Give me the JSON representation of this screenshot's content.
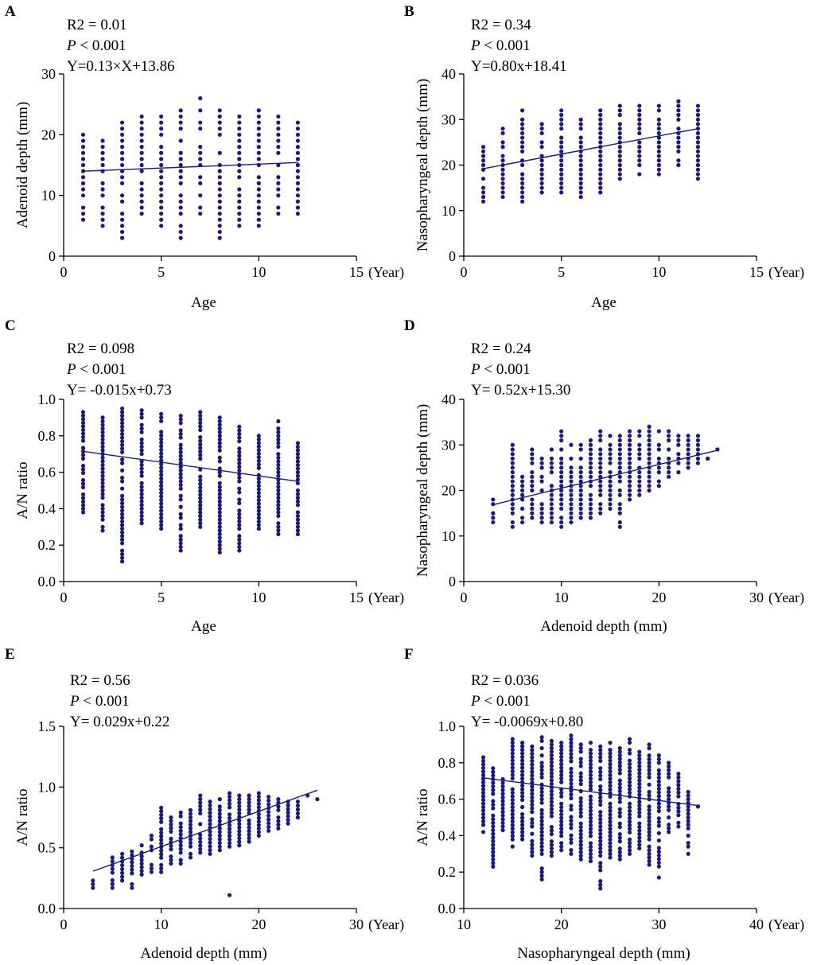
{
  "figure": {
    "series_color": "#1a1a7e",
    "axis_color": "#000000"
  },
  "chart_data": [
    {
      "type": "scatter",
      "panel": "A",
      "xlabel": "Age",
      "ylabel": "Adenoid depth (mm)",
      "x_unit": "(Year)",
      "xlim": [
        0,
        15
      ],
      "ylim": [
        0,
        30
      ],
      "xticks": [
        0,
        5,
        10,
        15
      ],
      "yticks": [
        0,
        10,
        20,
        30
      ],
      "stats": {
        "r2": "R2 = 0.01",
        "p_italic": "P",
        "p_rest": " < 0.001",
        "equation": "Y=0.13×X+13.86"
      },
      "fit": {
        "slope": 0.13,
        "intercept": 13.86,
        "x_range": [
          1,
          12
        ]
      },
      "groups": [
        {
          "x": 1,
          "y_min": 6,
          "y_max": 20
        },
        {
          "x": 2,
          "y_min": 5,
          "y_max": 19
        },
        {
          "x": 3,
          "y_min": 3,
          "y_max": 22
        },
        {
          "x": 4,
          "y_min": 7,
          "y_max": 23
        },
        {
          "x": 5,
          "y_min": 5,
          "y_max": 23
        },
        {
          "x": 6,
          "y_min": 3,
          "y_max": 24
        },
        {
          "x": 7,
          "y_min": 7,
          "y_max": 26
        },
        {
          "x": 8,
          "y_min": 3,
          "y_max": 24
        },
        {
          "x": 9,
          "y_min": 5,
          "y_max": 23
        },
        {
          "x": 10,
          "y_min": 5,
          "y_max": 24
        },
        {
          "x": 11,
          "y_min": 7,
          "y_max": 23
        },
        {
          "x": 12,
          "y_min": 7,
          "y_max": 22
        }
      ]
    },
    {
      "type": "scatter",
      "panel": "B",
      "xlabel": "Age",
      "ylabel": "Nasopharyngeal depth (mm)",
      "x_unit": "(Year)",
      "xlim": [
        0,
        15
      ],
      "ylim": [
        0,
        40
      ],
      "xticks": [
        0,
        5,
        10,
        15
      ],
      "yticks": [
        0,
        10,
        20,
        30,
        40
      ],
      "stats": {
        "r2": "R2 = 0.34",
        "p_italic": "P",
        "p_rest": " < 0.001",
        "equation": "Y=0.80x+18.41"
      },
      "fit": {
        "slope": 0.8,
        "intercept": 18.41,
        "x_range": [
          1,
          12
        ]
      },
      "groups": [
        {
          "x": 1,
          "y_min": 12,
          "y_max": 24
        },
        {
          "x": 2,
          "y_min": 13,
          "y_max": 28
        },
        {
          "x": 3,
          "y_min": 12,
          "y_max": 32
        },
        {
          "x": 4,
          "y_min": 14,
          "y_max": 29
        },
        {
          "x": 5,
          "y_min": 14,
          "y_max": 32
        },
        {
          "x": 6,
          "y_min": 13,
          "y_max": 30
        },
        {
          "x": 7,
          "y_min": 14,
          "y_max": 32
        },
        {
          "x": 8,
          "y_min": 17,
          "y_max": 33
        },
        {
          "x": 9,
          "y_min": 18,
          "y_max": 33
        },
        {
          "x": 10,
          "y_min": 18,
          "y_max": 33
        },
        {
          "x": 11,
          "y_min": 20,
          "y_max": 34
        },
        {
          "x": 12,
          "y_min": 17,
          "y_max": 33
        }
      ]
    },
    {
      "type": "scatter",
      "panel": "C",
      "xlabel": "Age",
      "ylabel": "A/N ratio",
      "x_unit": "(Year)",
      "xlim": [
        0,
        15
      ],
      "ylim": [
        0,
        1.0
      ],
      "xticks": [
        0,
        5,
        10,
        15
      ],
      "yticks": [
        0.0,
        0.2,
        0.4,
        0.6,
        0.8,
        1.0
      ],
      "ytick_labels": [
        "0.0",
        "0.2",
        "0.4",
        "0.6",
        "0.8",
        "1.0"
      ],
      "stats": {
        "r2": "R2 = 0.098",
        "p_italic": "P",
        "p_rest": " < 0.001",
        "equation": "Y= -0.015x+0.73"
      },
      "fit": {
        "slope": -0.015,
        "intercept": 0.73,
        "x_range": [
          1,
          12
        ]
      },
      "groups": [
        {
          "x": 1,
          "y_min": 0.38,
          "y_max": 0.93
        },
        {
          "x": 2,
          "y_min": 0.28,
          "y_max": 0.9
        },
        {
          "x": 3,
          "y_min": 0.11,
          "y_max": 0.95
        },
        {
          "x": 4,
          "y_min": 0.32,
          "y_max": 0.94
        },
        {
          "x": 5,
          "y_min": 0.29,
          "y_max": 0.92
        },
        {
          "x": 6,
          "y_min": 0.17,
          "y_max": 0.91
        },
        {
          "x": 7,
          "y_min": 0.3,
          "y_max": 0.93
        },
        {
          "x": 8,
          "y_min": 0.16,
          "y_max": 0.9
        },
        {
          "x": 9,
          "y_min": 0.17,
          "y_max": 0.85
        },
        {
          "x": 10,
          "y_min": 0.29,
          "y_max": 0.8
        },
        {
          "x": 11,
          "y_min": 0.26,
          "y_max": 0.88
        },
        {
          "x": 12,
          "y_min": 0.26,
          "y_max": 0.76
        }
      ]
    },
    {
      "type": "scatter",
      "panel": "D",
      "xlabel": "Adenoid depth (mm)",
      "ylabel": "Nasopharyngeal depth (mm)",
      "x_unit": "(Year)",
      "xlim": [
        0,
        30
      ],
      "ylim": [
        0,
        40
      ],
      "xticks": [
        0,
        10,
        20,
        30
      ],
      "yticks": [
        0,
        10,
        20,
        30,
        40
      ],
      "stats": {
        "r2": "R2 = 0.24",
        "p_italic": "P",
        "p_rest": " < 0.001",
        "equation": "Y= 0.52x+15.30"
      },
      "fit": {
        "slope": 0.52,
        "intercept": 15.3,
        "x_range": [
          3,
          26
        ]
      },
      "groups": [
        {
          "x": 3,
          "y_min": 13,
          "y_max": 18
        },
        {
          "x": 5,
          "y_min": 12,
          "y_max": 30
        },
        {
          "x": 6,
          "y_min": 13,
          "y_max": 23
        },
        {
          "x": 7,
          "y_min": 14,
          "y_max": 29
        },
        {
          "x": 8,
          "y_min": 13,
          "y_max": 27
        },
        {
          "x": 9,
          "y_min": 13,
          "y_max": 29
        },
        {
          "x": 10,
          "y_min": 12,
          "y_max": 33
        },
        {
          "x": 11,
          "y_min": 13,
          "y_max": 30
        },
        {
          "x": 12,
          "y_min": 14,
          "y_max": 30
        },
        {
          "x": 13,
          "y_min": 14,
          "y_max": 31
        },
        {
          "x": 14,
          "y_min": 15,
          "y_max": 33
        },
        {
          "x": 15,
          "y_min": 16,
          "y_max": 32
        },
        {
          "x": 16,
          "y_min": 12,
          "y_max": 32
        },
        {
          "x": 17,
          "y_min": 18,
          "y_max": 33
        },
        {
          "x": 18,
          "y_min": 19,
          "y_max": 33
        },
        {
          "x": 19,
          "y_min": 20,
          "y_max": 34
        },
        {
          "x": 20,
          "y_min": 21,
          "y_max": 33
        },
        {
          "x": 21,
          "y_min": 23,
          "y_max": 33
        },
        {
          "x": 22,
          "y_min": 24,
          "y_max": 32
        },
        {
          "x": 23,
          "y_min": 25,
          "y_max": 32
        },
        {
          "x": 24,
          "y_min": 26,
          "y_max": 32
        },
        {
          "x": 25,
          "y_min": 27,
          "y_max": 27
        },
        {
          "x": 26,
          "y_min": 29,
          "y_max": 29
        }
      ]
    },
    {
      "type": "scatter",
      "panel": "E",
      "xlabel": "Adenoid depth (mm)",
      "ylabel": "A/N ratio",
      "x_unit": "(Year)",
      "xlim": [
        0,
        30
      ],
      "ylim": [
        0,
        1.5
      ],
      "xticks": [
        0,
        10,
        20,
        30
      ],
      "yticks": [
        0.0,
        0.5,
        1.0,
        1.5
      ],
      "ytick_labels": [
        "0.0",
        "0.5",
        "1.0",
        "1.5"
      ],
      "stats": {
        "r2": "R2 = 0.56",
        "p_italic": "P",
        "p_rest": " < 0.001",
        "equation": "Y= 0.029x+0.22"
      },
      "fit": {
        "slope": 0.029,
        "intercept": 0.22,
        "x_range": [
          3,
          26
        ]
      },
      "groups": [
        {
          "x": 3,
          "y_min": 0.17,
          "y_max": 0.23
        },
        {
          "x": 5,
          "y_min": 0.17,
          "y_max": 0.42
        },
        {
          "x": 6,
          "y_min": 0.23,
          "y_max": 0.45
        },
        {
          "x": 7,
          "y_min": 0.17,
          "y_max": 0.47
        },
        {
          "x": 8,
          "y_min": 0.28,
          "y_max": 0.52
        },
        {
          "x": 9,
          "y_min": 0.3,
          "y_max": 0.6
        },
        {
          "x": 10,
          "y_min": 0.3,
          "y_max": 0.83
        },
        {
          "x": 11,
          "y_min": 0.37,
          "y_max": 0.75
        },
        {
          "x": 12,
          "y_min": 0.37,
          "y_max": 0.79
        },
        {
          "x": 13,
          "y_min": 0.42,
          "y_max": 0.81
        },
        {
          "x": 14,
          "y_min": 0.46,
          "y_max": 0.93
        },
        {
          "x": 15,
          "y_min": 0.45,
          "y_max": 0.88
        },
        {
          "x": 16,
          "y_min": 0.48,
          "y_max": 0.9
        },
        {
          "x": 17,
          "y_min": 0.51,
          "y_max": 0.95
        },
        {
          "x": 18,
          "y_min": 0.52,
          "y_max": 0.93
        },
        {
          "x": 19,
          "y_min": 0.55,
          "y_max": 0.93
        },
        {
          "x": 20,
          "y_min": 0.6,
          "y_max": 0.95
        },
        {
          "x": 21,
          "y_min": 0.64,
          "y_max": 0.92
        },
        {
          "x": 22,
          "y_min": 0.66,
          "y_max": 0.9
        },
        {
          "x": 23,
          "y_min": 0.7,
          "y_max": 0.88
        },
        {
          "x": 24,
          "y_min": 0.75,
          "y_max": 0.88
        }
      ],
      "points": [
        {
          "x": 17,
          "y": 0.11
        },
        {
          "x": 25,
          "y": 0.93
        },
        {
          "x": 26,
          "y": 0.9
        }
      ]
    },
    {
      "type": "scatter",
      "panel": "F",
      "xlabel": "Nasopharyngeal depth (mm)",
      "ylabel": "A/N ratio",
      "x_unit": "(Year)",
      "xlim": [
        10,
        40
      ],
      "ylim": [
        0,
        1.0
      ],
      "xticks": [
        10,
        20,
        30,
        40
      ],
      "yticks": [
        0.0,
        0.2,
        0.4,
        0.6,
        0.8,
        1.0
      ],
      "ytick_labels": [
        "0.0",
        "0.2",
        "0.4",
        "0.6",
        "0.8",
        "1.0"
      ],
      "stats": {
        "r2": "R2 = 0.036",
        "p_italic": "P",
        "p_rest": " < 0.001",
        "equation": "Y= -0.0069x+0.80"
      },
      "fit": {
        "slope": -0.0069,
        "intercept": 0.8,
        "x_range": [
          12,
          34
        ]
      },
      "groups": [
        {
          "x": 12,
          "y_min": 0.42,
          "y_max": 0.83
        },
        {
          "x": 13,
          "y_min": 0.23,
          "y_max": 0.77
        },
        {
          "x": 14,
          "y_min": 0.43,
          "y_max": 0.71
        },
        {
          "x": 15,
          "y_min": 0.34,
          "y_max": 0.93
        },
        {
          "x": 16,
          "y_min": 0.38,
          "y_max": 0.91
        },
        {
          "x": 17,
          "y_min": 0.29,
          "y_max": 0.89
        },
        {
          "x": 18,
          "y_min": 0.16,
          "y_max": 0.94
        },
        {
          "x": 19,
          "y_min": 0.29,
          "y_max": 0.92
        },
        {
          "x": 20,
          "y_min": 0.32,
          "y_max": 0.91
        },
        {
          "x": 21,
          "y_min": 0.3,
          "y_max": 0.95
        },
        {
          "x": 22,
          "y_min": 0.27,
          "y_max": 0.9
        },
        {
          "x": 23,
          "y_min": 0.26,
          "y_max": 0.91
        },
        {
          "x": 24,
          "y_min": 0.11,
          "y_max": 0.89
        },
        {
          "x": 25,
          "y_min": 0.28,
          "y_max": 0.91
        },
        {
          "x": 26,
          "y_min": 0.27,
          "y_max": 0.88
        },
        {
          "x": 27,
          "y_min": 0.3,
          "y_max": 0.93
        },
        {
          "x": 28,
          "y_min": 0.33,
          "y_max": 0.86
        },
        {
          "x": 29,
          "y_min": 0.24,
          "y_max": 0.9
        },
        {
          "x": 30,
          "y_min": 0.17,
          "y_max": 0.84
        },
        {
          "x": 31,
          "y_min": 0.42,
          "y_max": 0.8
        },
        {
          "x": 32,
          "y_min": 0.45,
          "y_max": 0.74
        },
        {
          "x": 33,
          "y_min": 0.3,
          "y_max": 0.64
        },
        {
          "x": 34,
          "y_min": 0.56,
          "y_max": 0.56
        }
      ]
    }
  ]
}
